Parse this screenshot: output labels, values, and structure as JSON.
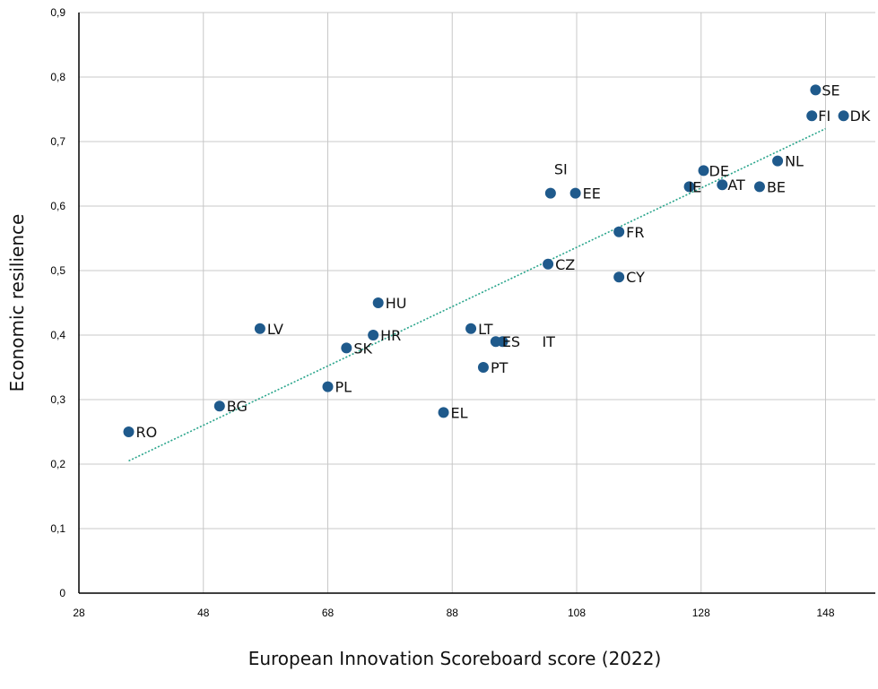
{
  "chart_data": {
    "type": "scatter",
    "xlabel": "European Innovation Scoreboard score (2022)",
    "ylabel": "Economic resilience",
    "xlim": [
      28,
      156
    ],
    "ylim": [
      0,
      0.9
    ],
    "x_ticks": [
      "28",
      "48",
      "68",
      "88",
      "108",
      "128",
      "148"
    ],
    "x_tick_values": [
      28,
      48,
      68,
      88,
      108,
      128,
      148
    ],
    "y_ticks": [
      "0",
      "0,1",
      "0,2",
      "0,3",
      "0,4",
      "0,5",
      "0,6",
      "0,7",
      "0,8",
      "0,9"
    ],
    "y_tick_values": [
      0,
      0.1,
      0.2,
      0.3,
      0.4,
      0.5,
      0.6,
      0.7,
      0.8,
      0.9
    ],
    "grid": true,
    "trendline": {
      "style": "dotted",
      "color": "#2aa58c",
      "from": [
        36,
        0.205
      ],
      "to": [
        148,
        0.72
      ]
    },
    "point_color": "#1f5a8c",
    "points": [
      {
        "label": "RO",
        "x": 36.0,
        "y": 0.25
      },
      {
        "label": "BG",
        "x": 50.6,
        "y": 0.29
      },
      {
        "label": "LV",
        "x": 57.1,
        "y": 0.41
      },
      {
        "label": "PL",
        "x": 68.0,
        "y": 0.32
      },
      {
        "label": "SK",
        "x": 71.0,
        "y": 0.38
      },
      {
        "label": "HR",
        "x": 75.3,
        "y": 0.4
      },
      {
        "label": "HU",
        "x": 76.1,
        "y": 0.45
      },
      {
        "label": "EL",
        "x": 86.6,
        "y": 0.28
      },
      {
        "label": "LT",
        "x": 91.0,
        "y": 0.41
      },
      {
        "label": "PT",
        "x": 93.0,
        "y": 0.35
      },
      {
        "label": "ES",
        "x": 95.0,
        "y": 0.39
      },
      {
        "label": "IT",
        "x": 96.1,
        "y": 0.39
      },
      {
        "label": "CZ",
        "x": 103.4,
        "y": 0.51
      },
      {
        "label": "SI",
        "x": 103.8,
        "y": 0.62
      },
      {
        "label": "EE",
        "x": 107.8,
        "y": 0.62
      },
      {
        "label": "FR",
        "x": 114.8,
        "y": 0.56
      },
      {
        "label": "CY",
        "x": 114.8,
        "y": 0.49
      },
      {
        "label": "IE",
        "x": 126.1,
        "y": 0.63
      },
      {
        "label": "DE",
        "x": 128.4,
        "y": 0.655
      },
      {
        "label": "AT",
        "x": 131.4,
        "y": 0.633
      },
      {
        "label": "BE",
        "x": 137.4,
        "y": 0.63
      },
      {
        "label": "NL",
        "x": 140.3,
        "y": 0.67
      },
      {
        "label": "FI",
        "x": 145.8,
        "y": 0.74
      },
      {
        "label": "SE",
        "x": 146.4,
        "y": 0.78
      },
      {
        "label": "DK",
        "x": 150.9,
        "y": 0.74
      }
    ]
  }
}
